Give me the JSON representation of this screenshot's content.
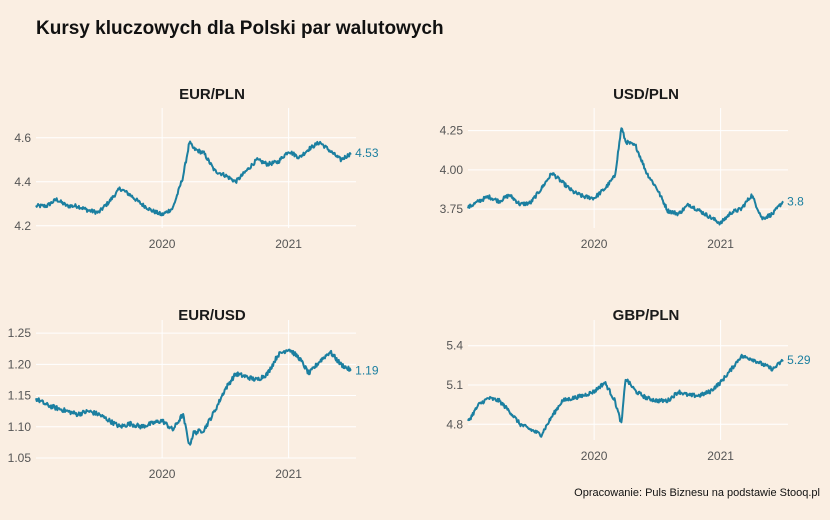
{
  "title": "Kursy kluczowych dla Polski par walutowych",
  "caption": "Opracowanie: Puls Biznesu na podstawie Stooq.pl",
  "colors": {
    "background": "#faeee2",
    "line": "#1b7fa0",
    "grid": "#ffffff"
  },
  "chart_data": [
    {
      "type": "line",
      "title": "EUR/PLN",
      "x_ticks": [
        "2020",
        "2021"
      ],
      "y_ticks": [
        "4.2",
        "4.4",
        "4.6"
      ],
      "ylim": [
        4.19,
        4.69
      ],
      "xlim": [
        "2019-01-01",
        "2021-07-15"
      ],
      "end_label": "4.53",
      "series": [
        {
          "x": [
            "2019-01-01",
            "2019-02-01",
            "2019-03-01",
            "2019-04-01",
            "2019-05-01",
            "2019-06-01",
            "2019-07-01",
            "2019-08-01",
            "2019-09-01",
            "2019-10-01",
            "2019-11-01",
            "2019-12-01",
            "2020-01-01",
            "2020-02-01",
            "2020-03-01",
            "2020-03-20",
            "2020-04-01",
            "2020-05-01",
            "2020-06-01",
            "2020-07-01",
            "2020-08-01",
            "2020-09-01",
            "2020-10-01",
            "2020-11-01",
            "2020-12-01",
            "2021-01-01",
            "2021-02-01",
            "2021-03-01",
            "2021-04-01",
            "2021-05-01",
            "2021-06-01",
            "2021-07-01"
          ],
          "y": [
            4.29,
            4.29,
            4.32,
            4.29,
            4.29,
            4.27,
            4.26,
            4.31,
            4.37,
            4.34,
            4.3,
            4.27,
            4.25,
            4.28,
            4.42,
            4.58,
            4.55,
            4.53,
            4.45,
            4.43,
            4.4,
            4.45,
            4.5,
            4.48,
            4.49,
            4.54,
            4.51,
            4.55,
            4.58,
            4.54,
            4.5,
            4.53
          ]
        }
      ]
    },
    {
      "type": "line",
      "title": "USD/PLN",
      "x_ticks": [
        "2020",
        "2021"
      ],
      "y_ticks": [
        "3.75",
        "4.00",
        "4.25"
      ],
      "ylim": [
        3.63,
        4.33
      ],
      "xlim": [
        "2019-01-01",
        "2021-07-15"
      ],
      "end_label": "3.8",
      "series": [
        {
          "x": [
            "2019-01-01",
            "2019-02-01",
            "2019-03-01",
            "2019-04-01",
            "2019-05-01",
            "2019-06-01",
            "2019-07-01",
            "2019-08-01",
            "2019-09-01",
            "2019-10-01",
            "2019-11-01",
            "2019-12-01",
            "2020-01-01",
            "2020-02-01",
            "2020-03-01",
            "2020-03-20",
            "2020-04-01",
            "2020-05-01",
            "2020-06-01",
            "2020-07-01",
            "2020-08-01",
            "2020-09-01",
            "2020-10-01",
            "2020-11-01",
            "2020-12-01",
            "2021-01-01",
            "2021-02-01",
            "2021-03-01",
            "2021-04-01",
            "2021-05-01",
            "2021-06-01",
            "2021-07-01"
          ],
          "y": [
            3.76,
            3.8,
            3.83,
            3.8,
            3.84,
            3.78,
            3.79,
            3.88,
            3.98,
            3.92,
            3.86,
            3.83,
            3.82,
            3.88,
            3.96,
            4.27,
            4.18,
            4.15,
            3.98,
            3.88,
            3.74,
            3.72,
            3.78,
            3.74,
            3.7,
            3.66,
            3.73,
            3.75,
            3.84,
            3.69,
            3.72,
            3.8
          ]
        }
      ]
    },
    {
      "type": "line",
      "title": "EUR/USD",
      "x_ticks": [
        "2020",
        "2021"
      ],
      "y_ticks": [
        "1.05",
        "1.10",
        "1.15",
        "1.20",
        "1.25"
      ],
      "ylim": [
        1.05,
        1.255
      ],
      "xlim": [
        "2019-01-01",
        "2021-07-15"
      ],
      "end_label": "1.19",
      "series": [
        {
          "x": [
            "2019-01-01",
            "2019-02-01",
            "2019-03-01",
            "2019-04-01",
            "2019-05-01",
            "2019-06-01",
            "2019-07-01",
            "2019-08-01",
            "2019-09-01",
            "2019-10-01",
            "2019-11-01",
            "2019-12-01",
            "2020-01-01",
            "2020-02-01",
            "2020-03-01",
            "2020-03-20",
            "2020-04-01",
            "2020-05-01",
            "2020-06-01",
            "2020-07-01",
            "2020-08-01",
            "2020-09-01",
            "2020-10-01",
            "2020-11-01",
            "2020-12-01",
            "2021-01-01",
            "2021-02-01",
            "2021-03-01",
            "2021-04-01",
            "2021-05-01",
            "2021-06-01",
            "2021-07-01"
          ],
          "y": [
            1.145,
            1.135,
            1.13,
            1.125,
            1.12,
            1.125,
            1.12,
            1.11,
            1.1,
            1.105,
            1.1,
            1.105,
            1.11,
            1.095,
            1.12,
            1.07,
            1.09,
            1.095,
            1.125,
            1.16,
            1.185,
            1.18,
            1.175,
            1.185,
            1.215,
            1.225,
            1.21,
            1.185,
            1.205,
            1.22,
            1.2,
            1.19
          ]
        }
      ]
    },
    {
      "type": "line",
      "title": "GBP/PLN",
      "x_ticks": [
        "2020",
        "2021"
      ],
      "y_ticks": [
        "4.8",
        "5.1",
        "5.4"
      ],
      "ylim": [
        4.68,
        5.52
      ],
      "xlim": [
        "2019-01-01",
        "2021-07-15"
      ],
      "end_label": "5.29",
      "series": [
        {
          "x": [
            "2019-01-01",
            "2019-02-01",
            "2019-03-01",
            "2019-04-01",
            "2019-05-01",
            "2019-06-01",
            "2019-07-01",
            "2019-08-01",
            "2019-09-01",
            "2019-10-01",
            "2019-11-01",
            "2019-12-01",
            "2020-01-01",
            "2020-02-01",
            "2020-03-01",
            "2020-03-20",
            "2020-04-01",
            "2020-05-01",
            "2020-06-01",
            "2020-07-01",
            "2020-08-01",
            "2020-09-01",
            "2020-10-01",
            "2020-11-01",
            "2020-12-01",
            "2021-01-01",
            "2021-02-01",
            "2021-03-01",
            "2021-04-01",
            "2021-05-01",
            "2021-06-01",
            "2021-07-01"
          ],
          "y": [
            4.82,
            4.95,
            5.0,
            4.98,
            4.9,
            4.8,
            4.76,
            4.72,
            4.86,
            4.98,
            5.0,
            5.02,
            5.05,
            5.12,
            4.98,
            4.8,
            5.15,
            5.05,
            5.0,
            4.98,
            4.98,
            5.05,
            5.02,
            5.02,
            5.05,
            5.12,
            5.22,
            5.32,
            5.3,
            5.26,
            5.22,
            5.29
          ]
        }
      ]
    }
  ]
}
